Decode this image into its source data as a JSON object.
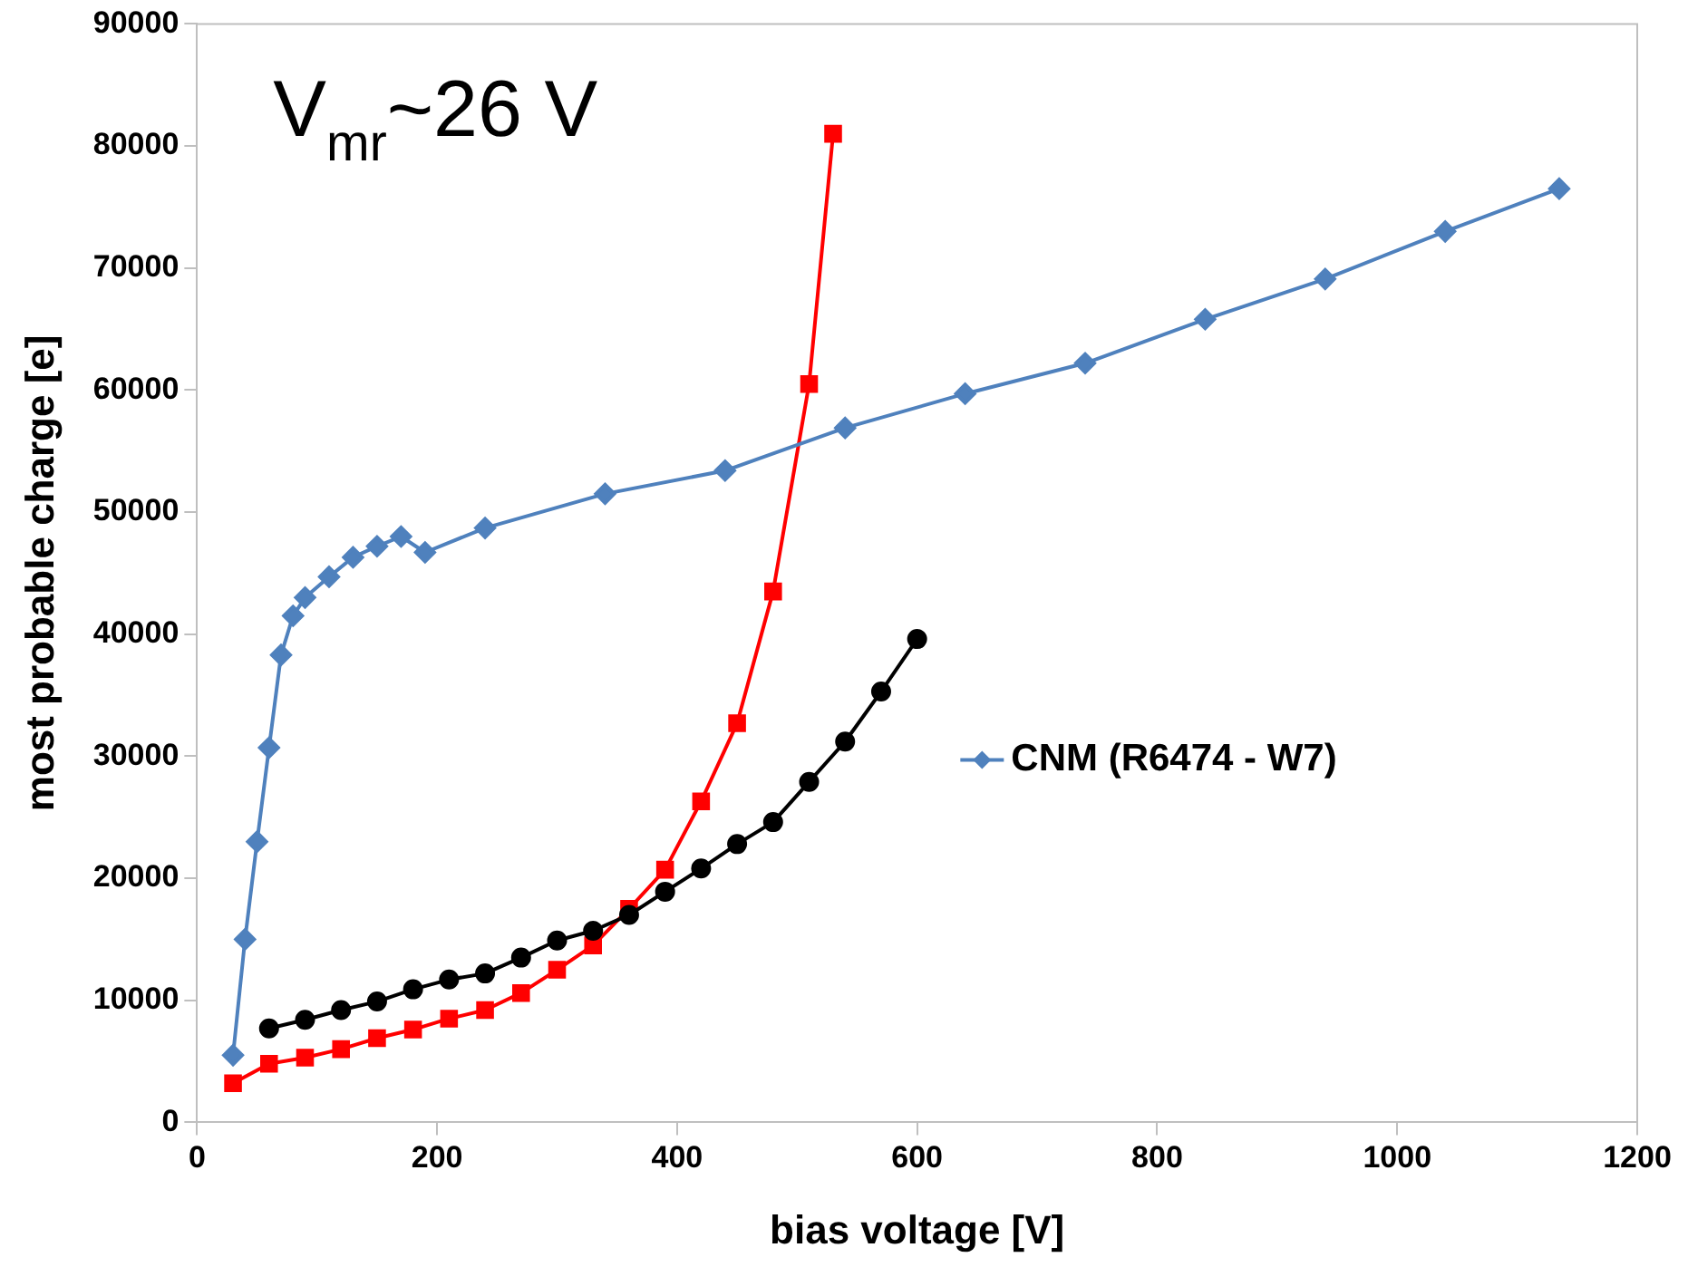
{
  "chart_data": {
    "type": "line",
    "xlabel": "bias voltage [V]",
    "ylabel": "most probable charge [e]",
    "xlim": [
      0,
      1200
    ],
    "xticks": [
      0,
      200,
      400,
      600,
      800,
      1000,
      1200
    ],
    "ylim": [
      0,
      90000
    ],
    "yticks": [
      0,
      10000,
      20000,
      30000,
      40000,
      50000,
      60000,
      70000,
      80000,
      90000
    ],
    "grid": false,
    "legend": "right",
    "annotations": [
      "V$_{mr}$~26 V"
    ],
    "series": [
      {
        "name": "CNM (R6474 - W7)",
        "color": "#4f81bd",
        "marker": "diamond",
        "x": [
          30,
          40,
          50,
          60,
          70,
          80,
          90,
          110,
          130,
          150,
          170,
          190,
          240,
          340,
          440,
          540,
          640,
          740,
          840,
          940,
          1040,
          1135
        ],
        "values": [
          5500,
          15000,
          23000,
          30700,
          38300,
          41500,
          43000,
          44700,
          46300,
          47200,
          48000,
          46700,
          48700,
          51500,
          53400,
          56900,
          59700,
          62200,
          65800,
          69100,
          73000,
          76500
        ]
      },
      {
        "color": "#ff0000",
        "marker": "square",
        "x": [
          30,
          60,
          90,
          120,
          150,
          180,
          210,
          240,
          270,
          300,
          330,
          360,
          390,
          420,
          450,
          480,
          510,
          530
        ],
        "values": [
          3200,
          4800,
          5300,
          6000,
          6900,
          7600,
          8500,
          9200,
          10600,
          12500,
          14500,
          17500,
          20700,
          26300,
          32700,
          43500,
          60500,
          81000
        ]
      },
      {
        "color": "#000000",
        "marker": "circle",
        "x": [
          60,
          90,
          120,
          150,
          180,
          210,
          240,
          270,
          300,
          330,
          360,
          390,
          420,
          450,
          480,
          510,
          540,
          570,
          600
        ],
        "values": [
          7700,
          8400,
          9200,
          9900,
          10900,
          11700,
          12200,
          13500,
          14900,
          15700,
          17000,
          18900,
          20800,
          22800,
          24600,
          27900,
          31200,
          35300,
          39600
        ]
      }
    ]
  }
}
